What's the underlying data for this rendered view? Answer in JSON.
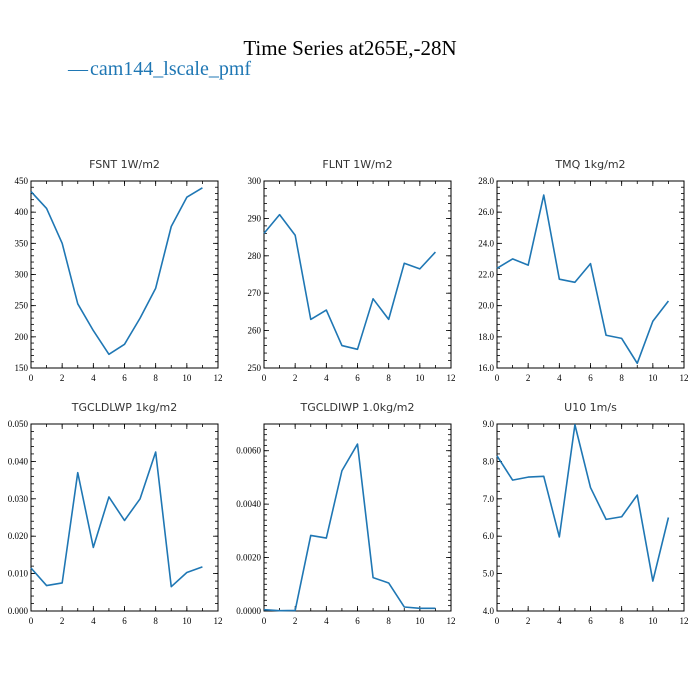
{
  "colors": {
    "series": "#1f77b4",
    "text": "#000000"
  },
  "header": {
    "title": "Time Series at265E,-28N",
    "legend_label": "cam144_lscale_pmf",
    "legend_marker": "—"
  },
  "chart_data": [
    {
      "type": "line",
      "title": "FSNT   1W/m2",
      "x": [
        0,
        1,
        2,
        3,
        4,
        5,
        6,
        7,
        8,
        9,
        10,
        11
      ],
      "series": [
        {
          "name": "cam144_lscale_pmf",
          "values": [
            433,
            406,
            350,
            253,
            210,
            172,
            188,
            230,
            278,
            377,
            424,
            439
          ]
        }
      ],
      "xlim": [
        0,
        12
      ],
      "ylim": [
        150,
        450
      ],
      "xticks": [
        0,
        2,
        4,
        6,
        8,
        10,
        12
      ],
      "xtick_labels": [
        "0",
        "2",
        "4",
        "6",
        "8",
        "10",
        "12"
      ],
      "yticks": [
        150,
        200,
        250,
        300,
        350,
        400,
        450
      ],
      "ytick_labels": [
        "150",
        "200",
        "250",
        "300",
        "350",
        "400",
        "450"
      ],
      "xminor": 1,
      "yminor": 10
    },
    {
      "type": "line",
      "title": "FLNT   1W/m2",
      "x": [
        0,
        1,
        2,
        3,
        4,
        5,
        6,
        7,
        8,
        9,
        10,
        11
      ],
      "series": [
        {
          "name": "cam144_lscale_pmf",
          "values": [
            286,
            291,
            285.5,
            263,
            265.5,
            256,
            255,
            268.5,
            263,
            278,
            276.5,
            281
          ]
        }
      ],
      "xlim": [
        0,
        12
      ],
      "ylim": [
        250,
        300
      ],
      "xticks": [
        0,
        2,
        4,
        6,
        8,
        10,
        12
      ],
      "xtick_labels": [
        "0",
        "2",
        "4",
        "6",
        "8",
        "10",
        "12"
      ],
      "yticks": [
        250,
        260,
        270,
        280,
        290,
        300
      ],
      "ytick_labels": [
        "250",
        "260",
        "270",
        "280",
        "290",
        "300"
      ],
      "xminor": 1,
      "yminor": 2
    },
    {
      "type": "line",
      "title": "TMQ   1kg/m2",
      "x": [
        0,
        1,
        2,
        3,
        4,
        5,
        6,
        7,
        8,
        9,
        10,
        11
      ],
      "series": [
        {
          "name": "cam144_lscale_pmf",
          "values": [
            22.4,
            23.0,
            22.6,
            27.1,
            21.7,
            21.5,
            22.7,
            18.1,
            17.9,
            16.3,
            19.0,
            20.3
          ]
        }
      ],
      "xlim": [
        0,
        12
      ],
      "ylim": [
        16,
        28
      ],
      "xticks": [
        0,
        2,
        4,
        6,
        8,
        10,
        12
      ],
      "xtick_labels": [
        "0",
        "2",
        "4",
        "6",
        "8",
        "10",
        "12"
      ],
      "yticks": [
        16,
        18,
        20,
        22,
        24,
        26,
        28
      ],
      "ytick_labels": [
        "16.0",
        "18.0",
        "20.0",
        "22.0",
        "24.0",
        "26.0",
        "28.0"
      ],
      "xminor": 1,
      "yminor": 0.4
    },
    {
      "type": "line",
      "title": "TGCLDLWP   1kg/m2",
      "x": [
        0,
        1,
        2,
        3,
        4,
        5,
        6,
        7,
        8,
        9,
        10,
        11
      ],
      "series": [
        {
          "name": "cam144_lscale_pmf",
          "values": [
            0.0115,
            0.0068,
            0.0075,
            0.037,
            0.017,
            0.0305,
            0.0242,
            0.03,
            0.0425,
            0.0065,
            0.0103,
            0.0118
          ]
        }
      ],
      "xlim": [
        0,
        12
      ],
      "ylim": [
        0,
        0.05
      ],
      "xticks": [
        0,
        2,
        4,
        6,
        8,
        10,
        12
      ],
      "xtick_labels": [
        "0",
        "2",
        "4",
        "6",
        "8",
        "10",
        "12"
      ],
      "yticks": [
        0,
        0.01,
        0.02,
        0.03,
        0.04,
        0.05
      ],
      "ytick_labels": [
        "0.000",
        "0.010",
        "0.020",
        "0.030",
        "0.040",
        "0.050"
      ],
      "xminor": 1,
      "yminor": 0.002
    },
    {
      "type": "line",
      "title": "TGCLDIWP   1.0kg/m2",
      "x": [
        0,
        1,
        2,
        3,
        4,
        5,
        6,
        7,
        8,
        9,
        10,
        11
      ],
      "series": [
        {
          "name": "cam144_lscale_pmf",
          "values": [
            5e-05,
            1e-05,
            2e-05,
            0.00283,
            0.00273,
            0.00525,
            0.00625,
            0.00125,
            0.00105,
            0.00015,
            0.0001,
            0.0001
          ]
        }
      ],
      "xlim": [
        0,
        12
      ],
      "ylim": [
        0,
        0.007
      ],
      "xticks": [
        0,
        2,
        4,
        6,
        8,
        10,
        12
      ],
      "xtick_labels": [
        "0",
        "2",
        "4",
        "6",
        "8",
        "10",
        "12"
      ],
      "yticks": [
        0,
        0.002,
        0.004,
        0.006
      ],
      "ytick_labels": [
        "0.0000",
        "0.0020",
        "0.0040",
        "0.0060"
      ],
      "xminor": 1,
      "yminor": 0.0002
    },
    {
      "type": "line",
      "title": "U10   1m/s",
      "x": [
        0,
        1,
        2,
        3,
        4,
        5,
        6,
        7,
        8,
        9,
        10,
        11
      ],
      "series": [
        {
          "name": "cam144_lscale_pmf",
          "values": [
            8.15,
            7.5,
            7.58,
            7.6,
            5.98,
            8.98,
            7.3,
            6.45,
            6.52,
            7.1,
            4.8,
            6.5
          ]
        }
      ],
      "xlim": [
        0,
        12
      ],
      "ylim": [
        4,
        9
      ],
      "xticks": [
        0,
        2,
        4,
        6,
        8,
        10,
        12
      ],
      "xtick_labels": [
        "0",
        "2",
        "4",
        "6",
        "8",
        "10",
        "12"
      ],
      "yticks": [
        4,
        5,
        6,
        7,
        8,
        9
      ],
      "ytick_labels": [
        "4.0",
        "5.0",
        "6.0",
        "7.0",
        "8.0",
        "9.0"
      ],
      "xminor": 1,
      "yminor": 0.2
    }
  ]
}
